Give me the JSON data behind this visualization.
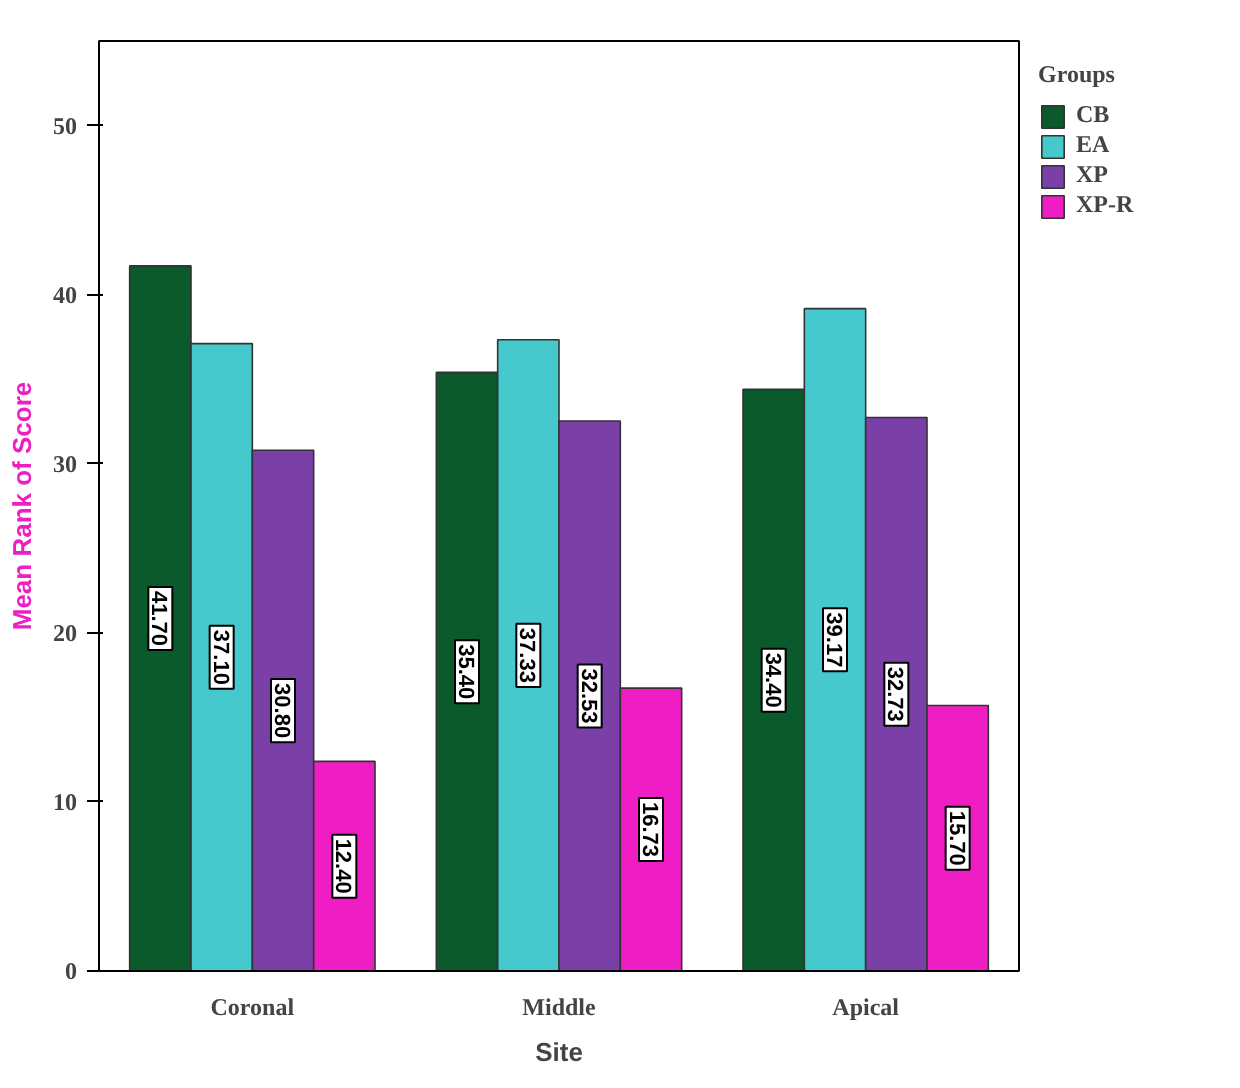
{
  "chart_data": {
    "type": "bar",
    "xlabel": "Site",
    "ylabel": "Mean Rank of Score",
    "legend_title": "Groups",
    "categories": [
      "Coronal",
      "Middle",
      "Apical"
    ],
    "series": [
      {
        "name": "CB",
        "color": "#0b5a2c",
        "values": [
          41.7,
          35.4,
          34.4
        ],
        "value_labels": [
          "41.70",
          "35.40",
          "34.40"
        ]
      },
      {
        "name": "EA",
        "color": "#46c9cc",
        "values": [
          37.1,
          37.33,
          39.17
        ],
        "value_labels": [
          "37.10",
          "37.33",
          "39.17"
        ]
      },
      {
        "name": "XP",
        "color": "#7a40a8",
        "values": [
          30.8,
          32.53,
          32.73
        ],
        "value_labels": [
          "30.80",
          "32.53",
          "32.73"
        ]
      },
      {
        "name": "XP-R",
        "color": "#ee1ec4",
        "values": [
          12.4,
          16.73,
          15.7
        ],
        "value_labels": [
          "12.40",
          "16.73",
          "15.70"
        ]
      }
    ],
    "ylim": [
      0,
      55
    ],
    "yticks": [
      0,
      10,
      20,
      30,
      40,
      50
    ],
    "grid": false,
    "legend": "right"
  }
}
